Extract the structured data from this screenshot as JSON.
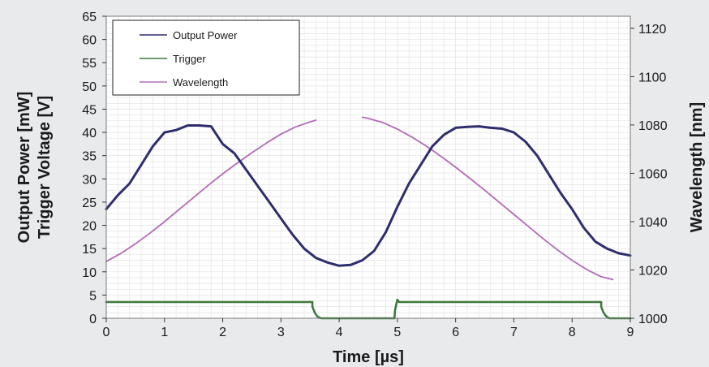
{
  "chart_data": {
    "type": "line",
    "xlabel": "Time [µs]",
    "ylabel_left": [
      "Output Power [mW]",
      "Trigger Voltage [V]"
    ],
    "ylabel_right": "Wavelength [nm]",
    "xlim": [
      0,
      9
    ],
    "ylim_left": [
      0,
      65
    ],
    "ylim_right": [
      1000,
      1125
    ],
    "x_ticks": [
      "0",
      "1",
      "2",
      "3",
      "4",
      "5",
      "6",
      "7",
      "8",
      "9"
    ],
    "y_left_ticks": [
      "0",
      "5",
      "10",
      "15",
      "20",
      "25",
      "30",
      "35",
      "40",
      "45",
      "50",
      "55",
      "60",
      "65"
    ],
    "y_right_ticks": [
      "1000",
      "1020",
      "1040",
      "1060",
      "1080",
      "1100",
      "1120"
    ],
    "grid": true,
    "legend_position": "top-left",
    "series": [
      {
        "name": "Output Power",
        "axis": "left",
        "color": "#2e2e6e",
        "x": [
          0,
          0.2,
          0.4,
          0.6,
          0.8,
          1.0,
          1.2,
          1.4,
          1.6,
          1.8,
          2.0,
          2.2,
          2.4,
          2.6,
          2.8,
          3.0,
          3.2,
          3.4,
          3.6,
          3.8,
          4.0,
          4.2,
          4.4,
          4.6,
          4.8,
          5.0,
          5.2,
          5.4,
          5.6,
          5.8,
          6.0,
          6.2,
          6.4,
          6.6,
          6.8,
          7.0,
          7.2,
          7.4,
          7.6,
          7.8,
          8.0,
          8.2,
          8.4,
          8.6,
          8.8,
          9.0
        ],
        "y": [
          23.5,
          26.5,
          29,
          33,
          37,
          40,
          40.5,
          41.5,
          41.5,
          41.3,
          37.5,
          35.5,
          32,
          28.5,
          25,
          21.5,
          18,
          15,
          13,
          12,
          11.3,
          11.5,
          12.5,
          14.5,
          18.5,
          24,
          29,
          33,
          37,
          39.5,
          41,
          41.2,
          41.3,
          41,
          40.8,
          40,
          38,
          35,
          31,
          27,
          23.5,
          19.5,
          16.5,
          15,
          14,
          13.5
        ]
      },
      {
        "name": "Trigger",
        "axis": "left",
        "color": "#3e7a3e",
        "x": [
          0,
          3.54,
          3.54,
          3.58,
          3.62,
          3.66,
          3.7,
          4.95,
          4.96,
          4.98,
          5.0,
          5.03,
          8.5,
          8.5,
          8.54,
          8.58,
          8.62,
          8.65,
          9.0
        ],
        "y": [
          3.5,
          3.5,
          2.5,
          1.2,
          0.5,
          0.1,
          0.0,
          0.0,
          1.8,
          3.0,
          4.0,
          3.5,
          3.5,
          2.5,
          1.2,
          0.5,
          0.1,
          0.0,
          0.0
        ]
      },
      {
        "name": "Wavelength",
        "axis": "right",
        "color": "#b36bb8",
        "x": [
          0,
          0.25,
          0.5,
          0.75,
          1.0,
          1.25,
          1.5,
          1.75,
          2.0,
          2.25,
          2.5,
          2.75,
          3.0,
          3.25,
          3.5,
          3.6,
          null,
          4.4,
          4.5,
          4.75,
          5.0,
          5.25,
          5.5,
          5.75,
          6.0,
          6.25,
          6.5,
          6.75,
          7.0,
          7.25,
          7.5,
          7.75,
          8.0,
          8.25,
          8.5,
          8.7
        ],
        "y": [
          1023.5,
          1026.8,
          1030.8,
          1035.2,
          1040.0,
          1045.0,
          1050.0,
          1055.0,
          1059.8,
          1064.2,
          1068.5,
          1072.5,
          1076.2,
          1079.2,
          1081.3,
          1082.0,
          null,
          1083.2,
          1082.7,
          1081.0,
          1078.3,
          1075.0,
          1071.2,
          1067.0,
          1062.5,
          1057.8,
          1053.0,
          1048.0,
          1043.0,
          1038.0,
          1033.0,
          1028.3,
          1024.0,
          1020.2,
          1017.2,
          1016.0
        ]
      }
    ]
  }
}
